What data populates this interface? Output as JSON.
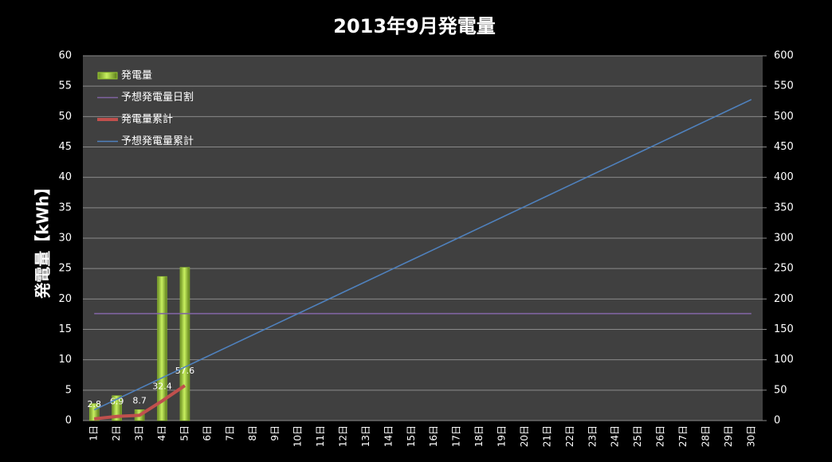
{
  "chart_data": {
    "type": "bar",
    "title": "2013年9月発電量",
    "ylabel": "発電量【kWh】",
    "categories": [
      "1日",
      "2日",
      "3日",
      "4日",
      "5日",
      "6日",
      "7日",
      "8日",
      "9日",
      "10日",
      "11日",
      "12日",
      "13日",
      "14日",
      "15日",
      "16日",
      "17日",
      "18日",
      "19日",
      "20日",
      "21日",
      "22日",
      "23日",
      "24日",
      "25日",
      "26日",
      "27日",
      "28日",
      "29日",
      "30日"
    ],
    "ylim": [
      0,
      60
    ],
    "yticks": [
      0,
      5,
      10,
      15,
      20,
      25,
      30,
      35,
      40,
      45,
      50,
      55,
      60
    ],
    "y2lim": [
      0,
      600
    ],
    "y2ticks": [
      0,
      50,
      100,
      150,
      200,
      250,
      300,
      350,
      400,
      450,
      500,
      550,
      600
    ],
    "grid": true,
    "legend": "upper left",
    "series": [
      {
        "name": "発電量",
        "type": "bar",
        "color": "#9acd32",
        "values": [
          2.8,
          4.1,
          1.8,
          23.7,
          25.2,
          null,
          null,
          null,
          null,
          null,
          null,
          null,
          null,
          null,
          null,
          null,
          null,
          null,
          null,
          null,
          null,
          null,
          null,
          null,
          null,
          null,
          null,
          null,
          null,
          null
        ]
      },
      {
        "name": "予想発電量日割",
        "type": "line",
        "color": "#8064a2",
        "values": [
          17.6,
          17.6,
          17.6,
          17.6,
          17.6,
          17.6,
          17.6,
          17.6,
          17.6,
          17.6,
          17.6,
          17.6,
          17.6,
          17.6,
          17.6,
          17.6,
          17.6,
          17.6,
          17.6,
          17.6,
          17.6,
          17.6,
          17.6,
          17.6,
          17.6,
          17.6,
          17.6,
          17.6,
          17.6,
          17.6
        ]
      },
      {
        "name": "発電量累計",
        "type": "line",
        "axis": "y2",
        "color": "#c0504d",
        "data_labels": true,
        "values": [
          2.8,
          6.9,
          8.7,
          32.4,
          57.6,
          null,
          null,
          null,
          null,
          null,
          null,
          null,
          null,
          null,
          null,
          null,
          null,
          null,
          null,
          null,
          null,
          null,
          null,
          null,
          null,
          null,
          null,
          null,
          null,
          null
        ]
      },
      {
        "name": "予想発電量累計",
        "type": "line",
        "axis": "y2",
        "color": "#4f81bd",
        "values": [
          17.6,
          35.2,
          52.8,
          70.4,
          88,
          105.6,
          123.2,
          140.8,
          158.4,
          176,
          193.6,
          211.2,
          228.8,
          246.4,
          264,
          281.6,
          299.2,
          316.8,
          334.4,
          352,
          369.6,
          387.2,
          404.8,
          422.4,
          440,
          457.6,
          475.2,
          492.8,
          510.4,
          528
        ]
      }
    ]
  }
}
